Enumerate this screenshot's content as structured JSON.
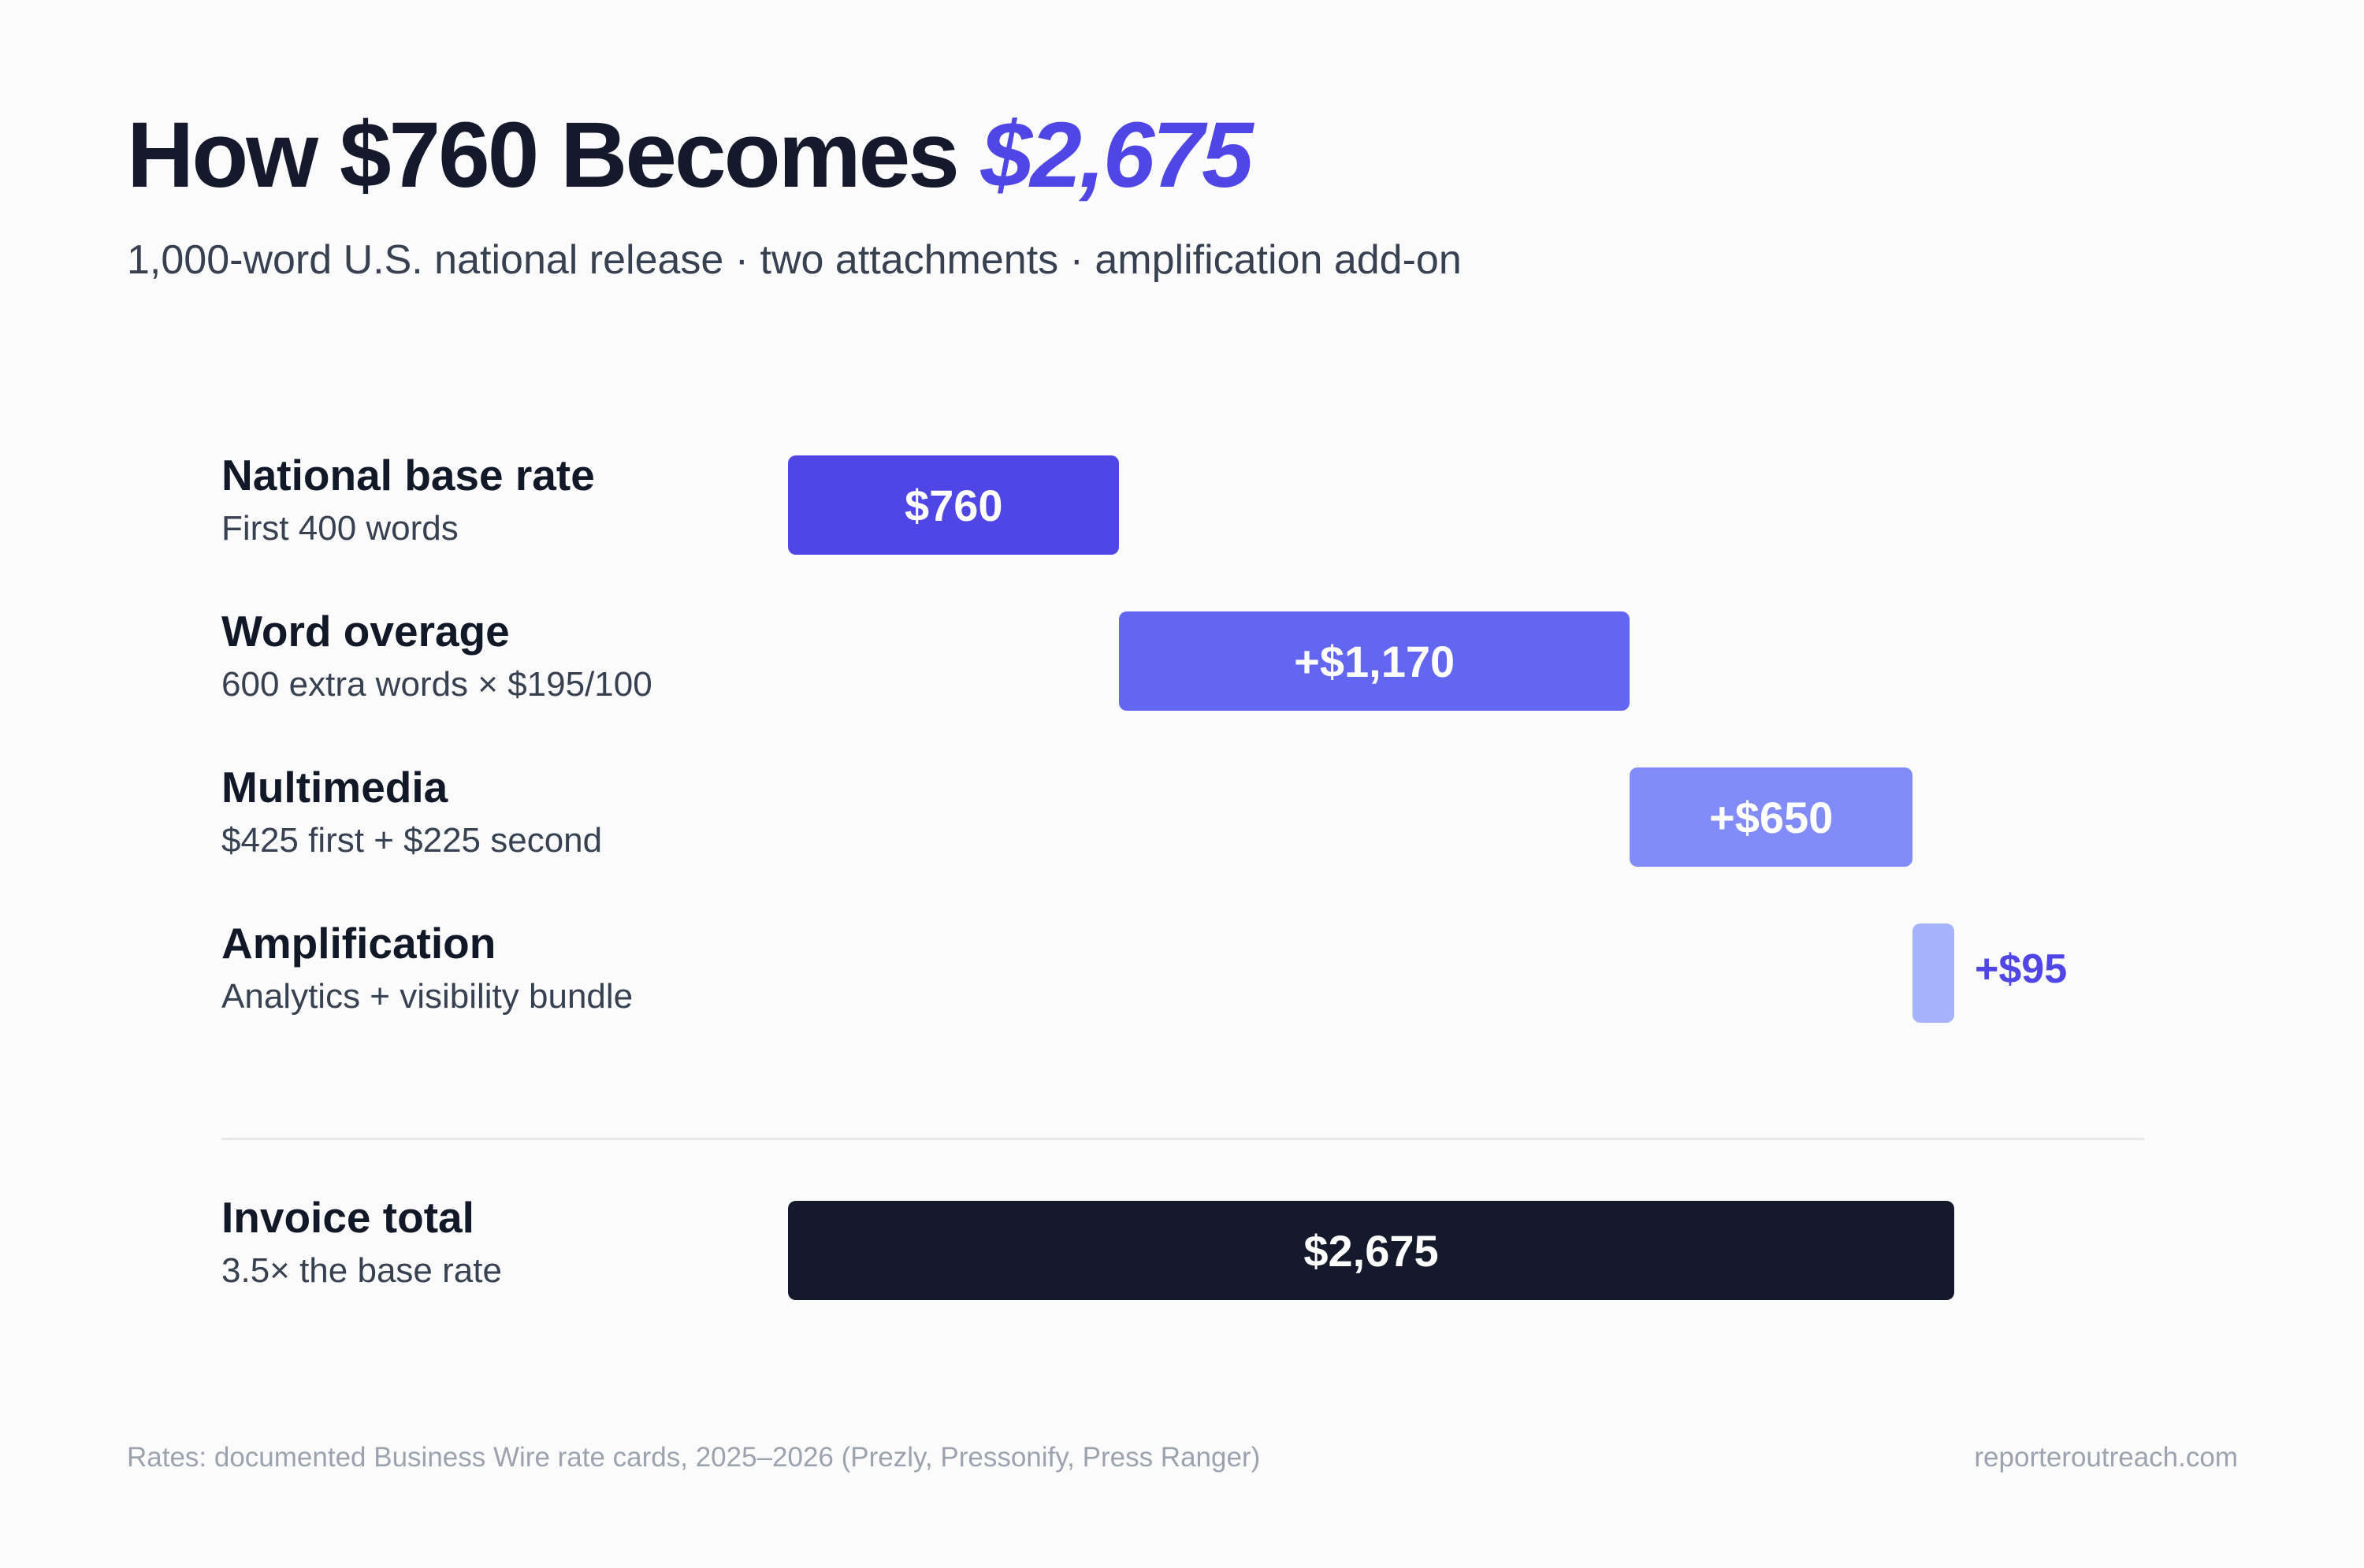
{
  "header": {
    "title_prefix": "How $760 Becomes",
    "title_accent": "$2,675",
    "subtitle": "1,000-word U.S. national release · two attachments · amplification add-on"
  },
  "chart_data": {
    "type": "bar",
    "subtype": "waterfall",
    "categories": [
      "National base rate",
      "Word overage",
      "Multimedia",
      "Amplification"
    ],
    "details": [
      "First 400 words",
      "600 extra words × $195/100",
      "$425 first + $225 second",
      "Analytics + visibility bundle"
    ],
    "values": [
      760,
      1170,
      650,
      95
    ],
    "value_labels": [
      "$760",
      "+$1,170",
      "+$650",
      "+$95"
    ],
    "colors": [
      "#4f46e5",
      "#6366f1",
      "#818cf8",
      "#a5b4fc"
    ],
    "total": {
      "label": "Invoice total",
      "detail": "3.5× the base rate",
      "value": 2675,
      "value_label": "$2,675",
      "color": "#141a2b"
    },
    "xlim": [
      0,
      2675
    ]
  },
  "footer": {
    "source": "Rates: documented Business Wire rate cards, 2025–2026 (Prezly, Pressonify, Press Ranger)",
    "site": "reporteroutreach.com"
  }
}
